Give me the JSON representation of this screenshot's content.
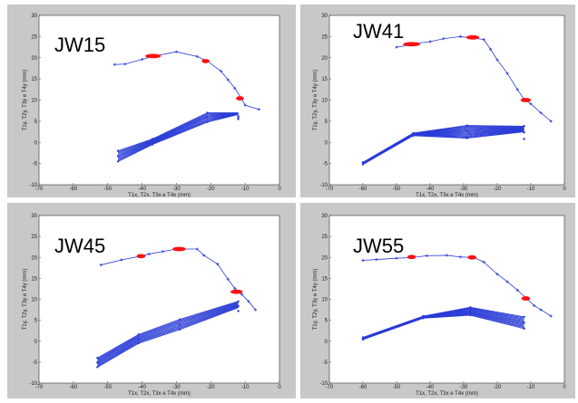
{
  "colors": {
    "trace": "#2a3cd6",
    "highlight": "#ff1010",
    "panel_bg": "#c8c8c8",
    "plot_bg": "#ffffff"
  },
  "chart_data": [
    {
      "type": "line",
      "title": "JW15",
      "xlabel": "T1x, T2x, T3x e T4x (mm)",
      "ylabel": "T1y, T2y, T3y e T4y (mm)",
      "xlim": [
        -70,
        0
      ],
      "ylim": [
        -10,
        30
      ],
      "xticks": [
        "-70",
        "-60",
        "-50",
        "-40",
        "-30",
        "-20",
        "-10",
        "0"
      ],
      "yticks": [
        "-10",
        "-5",
        "0",
        "5",
        "10",
        "15",
        "20",
        "25",
        "30"
      ],
      "upper_trace": {
        "x": [
          -48,
          -45,
          -40,
          -37,
          -30,
          -24,
          -21,
          -17,
          -15,
          -13,
          -11,
          -10,
          -6
        ],
        "y": [
          18.4,
          18.5,
          19.6,
          20.3,
          21.4,
          20.3,
          19.2,
          16.8,
          14.8,
          12.8,
          10.3,
          8.8,
          7.8
        ]
      },
      "red_markers": [
        {
          "x": -36.8,
          "y": 20.4,
          "w": 3.5
        },
        {
          "x": -21.5,
          "y": 19.2,
          "w": 1.2
        },
        {
          "x": -11.5,
          "y": 10.4,
          "w": 1.2
        }
      ],
      "lower_bundle": {
        "x": [
          -47,
          -37,
          -21,
          -12
        ],
        "top": [
          -2.0,
          0.8,
          7.0,
          6.2
        ],
        "bottom": [
          -4.5,
          -0.5,
          4.8,
          5.5
        ],
        "upper_spread": [
          6.6,
          7.0
        ],
        "count": 10
      }
    },
    {
      "type": "line",
      "title": "JW41",
      "xlabel": "T1x, T2x, T3x e T4x (mm)",
      "ylabel": "T1y, T2y, T3y e T4y (mm)",
      "xlim": [
        -70,
        0
      ],
      "ylim": [
        -10,
        30
      ],
      "xticks": [
        "-70",
        "-60",
        "-50",
        "-40",
        "-30",
        "-20",
        "-10",
        "0"
      ],
      "yticks": [
        "-10",
        "-5",
        "0",
        "5",
        "10",
        "15",
        "20",
        "25",
        "30"
      ],
      "upper_trace": {
        "x": [
          -50,
          -46,
          -44,
          -40,
          -36,
          -31,
          -27,
          -24,
          -22,
          -20,
          -17,
          -14,
          -12,
          -10,
          -7,
          -4
        ],
        "y": [
          22.5,
          23.0,
          23.4,
          23.8,
          24.5,
          25.0,
          24.6,
          24.3,
          22.0,
          19.5,
          16.3,
          12.5,
          10.2,
          9.1,
          7.0,
          5.0
        ]
      },
      "red_markers": [
        {
          "x": -45.5,
          "y": 23.2,
          "w": 4.0
        },
        {
          "x": -27.3,
          "y": 24.8,
          "w": 2.8
        },
        {
          "x": -11.5,
          "y": 10.0,
          "w": 2.0
        }
      ],
      "lower_bundle": {
        "x": [
          -60,
          -45,
          -29,
          -12
        ],
        "top": [
          -4.7,
          2.2,
          4.0,
          3.9
        ],
        "bottom": [
          -5.2,
          1.6,
          1.0,
          0.8
        ],
        "upper_spread": [
          2.5,
          3.8
        ],
        "count": 14
      }
    },
    {
      "type": "line",
      "title": "JW45",
      "xlabel": "T1x, T2x, T3x e T4x (mm)",
      "ylabel": "T1y, T2y, T3y e T4y (mm)",
      "xlim": [
        -70,
        0
      ],
      "ylim": [
        -10,
        30
      ],
      "xticks": [
        "-70",
        "-60",
        "-50",
        "-40",
        "-30",
        "-20",
        "-10",
        "0"
      ],
      "yticks": [
        "-10",
        "-5",
        "0",
        "5",
        "10",
        "15",
        "20",
        "25",
        "30"
      ],
      "upper_trace": {
        "x": [
          -52,
          -46,
          -41,
          -38,
          -34,
          -30,
          -28,
          -24,
          -22,
          -18,
          -15,
          -13,
          -11,
          -9,
          -7
        ],
        "y": [
          18.2,
          19.4,
          20.2,
          20.8,
          21.4,
          22.0,
          22.0,
          22.0,
          20.5,
          18.4,
          14.8,
          12.6,
          11.2,
          9.5,
          7.5
        ]
      },
      "red_markers": [
        {
          "x": -40.3,
          "y": 20.3,
          "w": 1.5
        },
        {
          "x": -29.2,
          "y": 22.0,
          "w": 2.8
        },
        {
          "x": -12.5,
          "y": 11.8,
          "w": 2.5
        }
      ],
      "lower_bundle": {
        "x": [
          -53,
          -41,
          -29,
          -12
        ],
        "top": [
          -4.0,
          1.6,
          5.2,
          9.5
        ],
        "bottom": [
          -6.2,
          -0.5,
          2.8,
          7.2
        ],
        "upper_spread": [
          8.0,
          9.5
        ],
        "count": 10
      }
    },
    {
      "type": "line",
      "title": "JW55",
      "xlabel": "T1x, T2x, T3x e T4x (mm)",
      "ylabel": "T1y, T2y, T3y e T4y (mm)",
      "xlim": [
        -70,
        0
      ],
      "ylim": [
        -10,
        30
      ],
      "xticks": [
        "-70",
        "-60",
        "-50",
        "-40",
        "-30",
        "-20",
        "-10",
        "0"
      ],
      "yticks": [
        "-10",
        "-5",
        "0",
        "5",
        "10",
        "15",
        "20",
        "25",
        "30"
      ],
      "upper_trace": {
        "x": [
          -60,
          -56,
          -50,
          -45,
          -41,
          -35,
          -31,
          -27,
          -24,
          -20,
          -17,
          -14,
          -11,
          -9,
          -7,
          -4
        ],
        "y": [
          19.3,
          19.5,
          19.8,
          20.0,
          20.4,
          20.5,
          20.1,
          20.0,
          18.9,
          16.0,
          14.2,
          12.2,
          10.0,
          8.5,
          7.5,
          6.0
        ]
      },
      "red_markers": [
        {
          "x": -45.5,
          "y": 20.1,
          "w": 1.5
        },
        {
          "x": -27.5,
          "y": 20.0,
          "w": 1.5
        },
        {
          "x": -11.5,
          "y": 10.2,
          "w": 1.5
        }
      ],
      "lower_bundle": {
        "x": [
          -60,
          -42,
          -28,
          -12
        ],
        "top": [
          0.9,
          6.0,
          8.1,
          5.8
        ],
        "bottom": [
          0.4,
          5.5,
          6.2,
          3.0
        ],
        "upper_spread": [
          3.0,
          5.8
        ],
        "count": 12
      }
    }
  ]
}
